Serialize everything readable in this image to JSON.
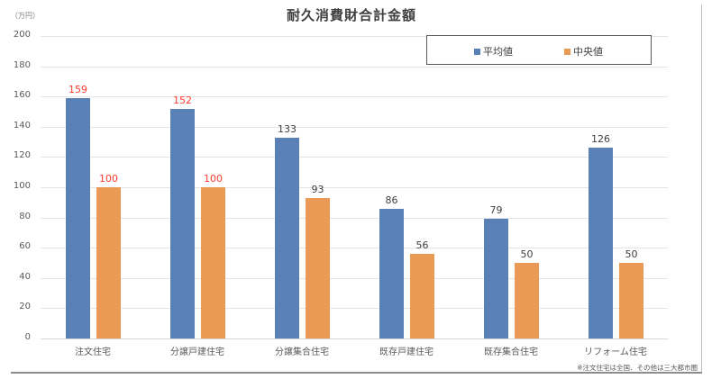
{
  "title": "耐久消費財合計金額",
  "unit_label": "（万円）",
  "legend": {
    "items": [
      {
        "label": "平均値",
        "color": "#5a80b8"
      },
      {
        "label": "中央値",
        "color": "#eb9a56"
      }
    ]
  },
  "footnote": "※注文住宅は全国、その他は三大都市圏",
  "y_ticks": [
    "200",
    "180",
    "160",
    "140",
    "120",
    "100",
    "80",
    "60",
    "40",
    "20",
    "0"
  ],
  "categories": [
    "注文住宅",
    "分譲戸建住宅",
    "分譲集合住宅",
    "既存戸建住宅",
    "既存集合住宅",
    "リフォーム住宅"
  ],
  "labels": {
    "avg": [
      "159",
      "152",
      "133",
      "86",
      "79",
      "126"
    ],
    "med": [
      "100",
      "100",
      "93",
      "56",
      "50",
      "50"
    ]
  },
  "chart_data": {
    "type": "bar",
    "title": "耐久消費財合計金額",
    "xlabel": "",
    "ylabel": "（万円）",
    "ylim": [
      0,
      200
    ],
    "yticks": [
      0,
      20,
      40,
      60,
      80,
      100,
      120,
      140,
      160,
      180,
      200
    ],
    "grid": true,
    "legend_position": "top-right",
    "categories": [
      "注文住宅",
      "分譲戸建住宅",
      "分譲集合住宅",
      "既存戸建住宅",
      "既存集合住宅",
      "リフォーム住宅"
    ],
    "series": [
      {
        "name": "平均値",
        "color": "#5a80b8",
        "values": [
          159,
          152,
          133,
          86,
          79,
          126
        ]
      },
      {
        "name": "中央値",
        "color": "#eb9a56",
        "values": [
          100,
          100,
          93,
          56,
          50,
          50
        ]
      }
    ],
    "annotations": [
      "※注文住宅は全国、その他は三大都市圏"
    ],
    "highlighted_labels": {
      "color": "#ff3b30",
      "points": [
        "注文住宅 平均値 159",
        "注文住宅 中央値 100",
        "分譲戸建住宅 平均値 152",
        "分譲戸建住宅 中央値 100"
      ]
    }
  }
}
